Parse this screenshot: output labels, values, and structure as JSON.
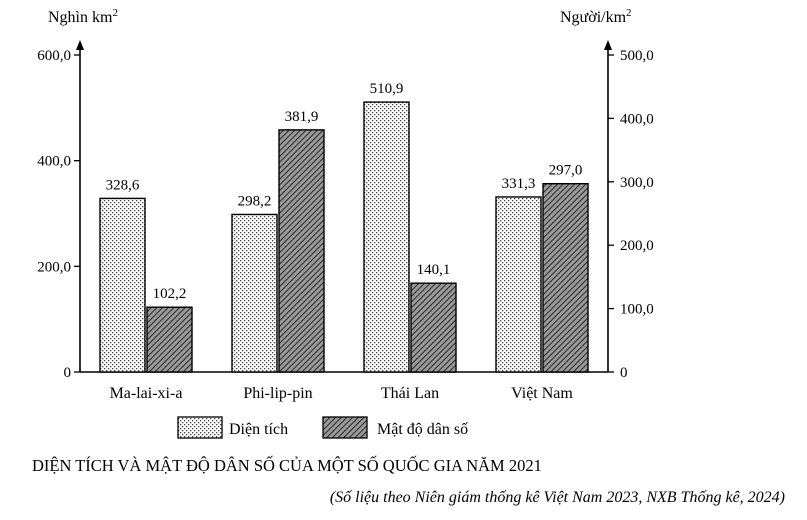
{
  "chart_data": {
    "type": "bar",
    "categories": [
      "Ma-lai-xi-a",
      "Phi-lip-pin",
      "Thái Lan",
      "Việt Nam"
    ],
    "series": [
      {
        "name": "Diện tích",
        "axis": "left",
        "pattern": "dotted",
        "values": [
          328.6,
          298.2,
          510.9,
          331.3
        ]
      },
      {
        "name": "Mật độ dân số",
        "axis": "right",
        "pattern": "hatched",
        "values": [
          102.2,
          381.9,
          140.1,
          297.0
        ]
      }
    ],
    "y_left": {
      "label": "Nghìn km²",
      "ylim": [
        0,
        600
      ],
      "ticks": [
        0,
        200,
        400,
        600
      ],
      "tick_labels": [
        "0",
        "200,0",
        "400,0",
        "600,0"
      ]
    },
    "y_right": {
      "label": "Người/km²",
      "ylim": [
        0,
        500
      ],
      "ticks": [
        0,
        100,
        200,
        300,
        400,
        500
      ],
      "tick_labels": [
        "0",
        "100,0",
        "200,0",
        "300,0",
        "400,0",
        "500,0"
      ]
    },
    "value_labels": [
      [
        "328,6",
        "298,2",
        "510,9",
        "331,3"
      ],
      [
        "102,2",
        "381,9",
        "140,1",
        "297,0"
      ]
    ],
    "title": "DIỆN TÍCH VÀ MẬT ĐỘ DÂN SỐ CỦA MỘT SỐ QUỐC GIA NĂM 2021",
    "source": "(Số liệu theo Niên giám thống kê Việt Nam 2023, NXB Thống kê, 2024)",
    "legend_position": "bottom",
    "grid": false
  }
}
